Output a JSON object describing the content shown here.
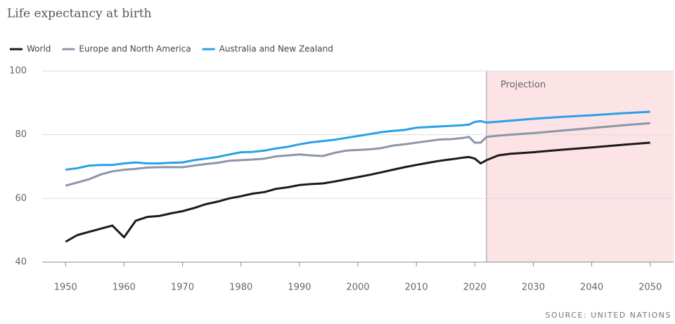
{
  "chart_data": {
    "type": "line",
    "title": "Life expectancy at birth",
    "source": "SOURCE: UNITED NATIONS",
    "x": [
      1950,
      1952,
      1954,
      1956,
      1958,
      1960,
      1962,
      1964,
      1966,
      1968,
      1970,
      1972,
      1974,
      1976,
      1978,
      1980,
      1982,
      1984,
      1986,
      1988,
      1990,
      1992,
      1994,
      1996,
      1998,
      2000,
      2002,
      2004,
      2006,
      2008,
      2010,
      2012,
      2014,
      2016,
      2018,
      2019,
      2020,
      2021,
      2022,
      2024,
      2026,
      2030,
      2035,
      2040,
      2045,
      2050
    ],
    "series": [
      {
        "name": "World",
        "color": "#1a1a1a",
        "values": [
          46.4,
          48.5,
          49.5,
          50.5,
          51.5,
          47.8,
          53,
          54.2,
          54.5,
          55.3,
          56,
          57,
          58.2,
          59,
          60,
          60.7,
          61.5,
          62,
          63,
          63.5,
          64.2,
          64.5,
          64.7,
          65.3,
          66,
          66.7,
          67.4,
          68.2,
          69,
          69.8,
          70.5,
          71.2,
          71.8,
          72.3,
          72.8,
          73,
          72.5,
          71,
          72,
          73.5,
          74,
          74.5,
          75.3,
          76,
          76.8,
          77.5
        ]
      },
      {
        "name": "Europe and North America",
        "color": "#8c96a8",
        "values": [
          64,
          65,
          66,
          67.5,
          68.5,
          69,
          69.3,
          69.7,
          69.8,
          69.8,
          69.8,
          70.3,
          70.8,
          71.2,
          71.8,
          72,
          72.2,
          72.5,
          73.2,
          73.5,
          73.8,
          73.5,
          73.3,
          74.3,
          75,
          75.2,
          75.4,
          75.8,
          76.6,
          77,
          77.5,
          78,
          78.5,
          78.6,
          79,
          79.3,
          77.5,
          77.5,
          79.3,
          79.7,
          80,
          80.5,
          81.3,
          82.1,
          82.9,
          83.6
        ]
      },
      {
        "name": "Australia and New Zealand",
        "color": "#2aa0e6",
        "values": [
          69,
          69.5,
          70.3,
          70.5,
          70.5,
          71,
          71.3,
          71,
          71,
          71.2,
          71.3,
          72,
          72.5,
          73,
          73.8,
          74.5,
          74.6,
          75,
          75.7,
          76.2,
          77,
          77.6,
          78,
          78.4,
          79,
          79.6,
          80.2,
          80.8,
          81.2,
          81.5,
          82.2,
          82.4,
          82.6,
          82.8,
          83,
          83.2,
          84,
          84.3,
          83.8,
          84.1,
          84.4,
          85,
          85.6,
          86.1,
          86.7,
          87.2
        ]
      }
    ],
    "annotations": [
      {
        "label": "Projection",
        "x": 2022
      }
    ],
    "xlim": [
      1946,
      2054
    ],
    "xticks": [
      1950,
      1960,
      1970,
      1980,
      1990,
      2000,
      2010,
      2020,
      2030,
      2040,
      2050
    ],
    "ylim": [
      40,
      100
    ],
    "yticks": [
      40,
      60,
      80,
      100
    ],
    "grid": true
  }
}
